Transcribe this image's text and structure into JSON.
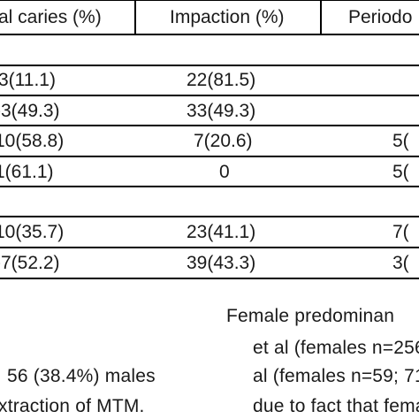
{
  "table": {
    "headers": [
      "al caries (%)",
      "Impaction (%)",
      "Periodo"
    ],
    "rows": [
      {
        "caries": "3(11.1)",
        "impaction": "22(81.5)",
        "perio": ""
      },
      {
        "caries": "-3(49.3)",
        "impaction": "33(49.3)",
        "perio": ""
      },
      {
        "caries": "10(58.8)",
        "impaction": "7(20.6)",
        "perio": "5("
      },
      {
        "caries": "1(61.1)",
        "impaction": "0",
        "perio": "5("
      },
      {
        "caries": "10(35.7)",
        "impaction": "23(41.1)",
        "perio": "7("
      },
      {
        "caries": "-7(52.2)",
        "impaction": "39(43.3)",
        "perio": "3("
      }
    ]
  },
  "text": {
    "right_col": [
      "Female predominan",
      "et al (females n=256",
      "al (females n=59; 71",
      "due to fact that fema"
    ],
    "left_col": [
      "56  (38.4%)  males",
      "xtraction  of  MTM."
    ]
  }
}
